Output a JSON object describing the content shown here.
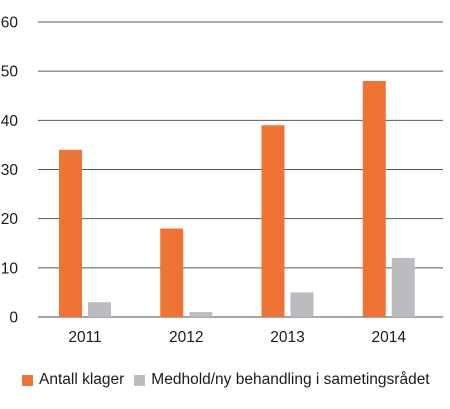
{
  "chart_data": {
    "type": "bar",
    "title": "",
    "xlabel": "",
    "ylabel": "",
    "categories": [
      "2011",
      "2012",
      "2013",
      "2014"
    ],
    "ylim": [
      0,
      60
    ],
    "yticks": [
      0,
      10,
      20,
      30,
      40,
      50,
      60
    ],
    "grid": true,
    "legend_position": "bottom",
    "series": [
      {
        "name": "Antall klager",
        "color": "#f07336",
        "values": [
          34,
          18,
          39,
          48
        ]
      },
      {
        "name": "Medhold/ny behandling i sametingsrådet",
        "color": "#bbbcbf",
        "values": [
          3,
          1,
          5,
          12
        ]
      }
    ]
  }
}
